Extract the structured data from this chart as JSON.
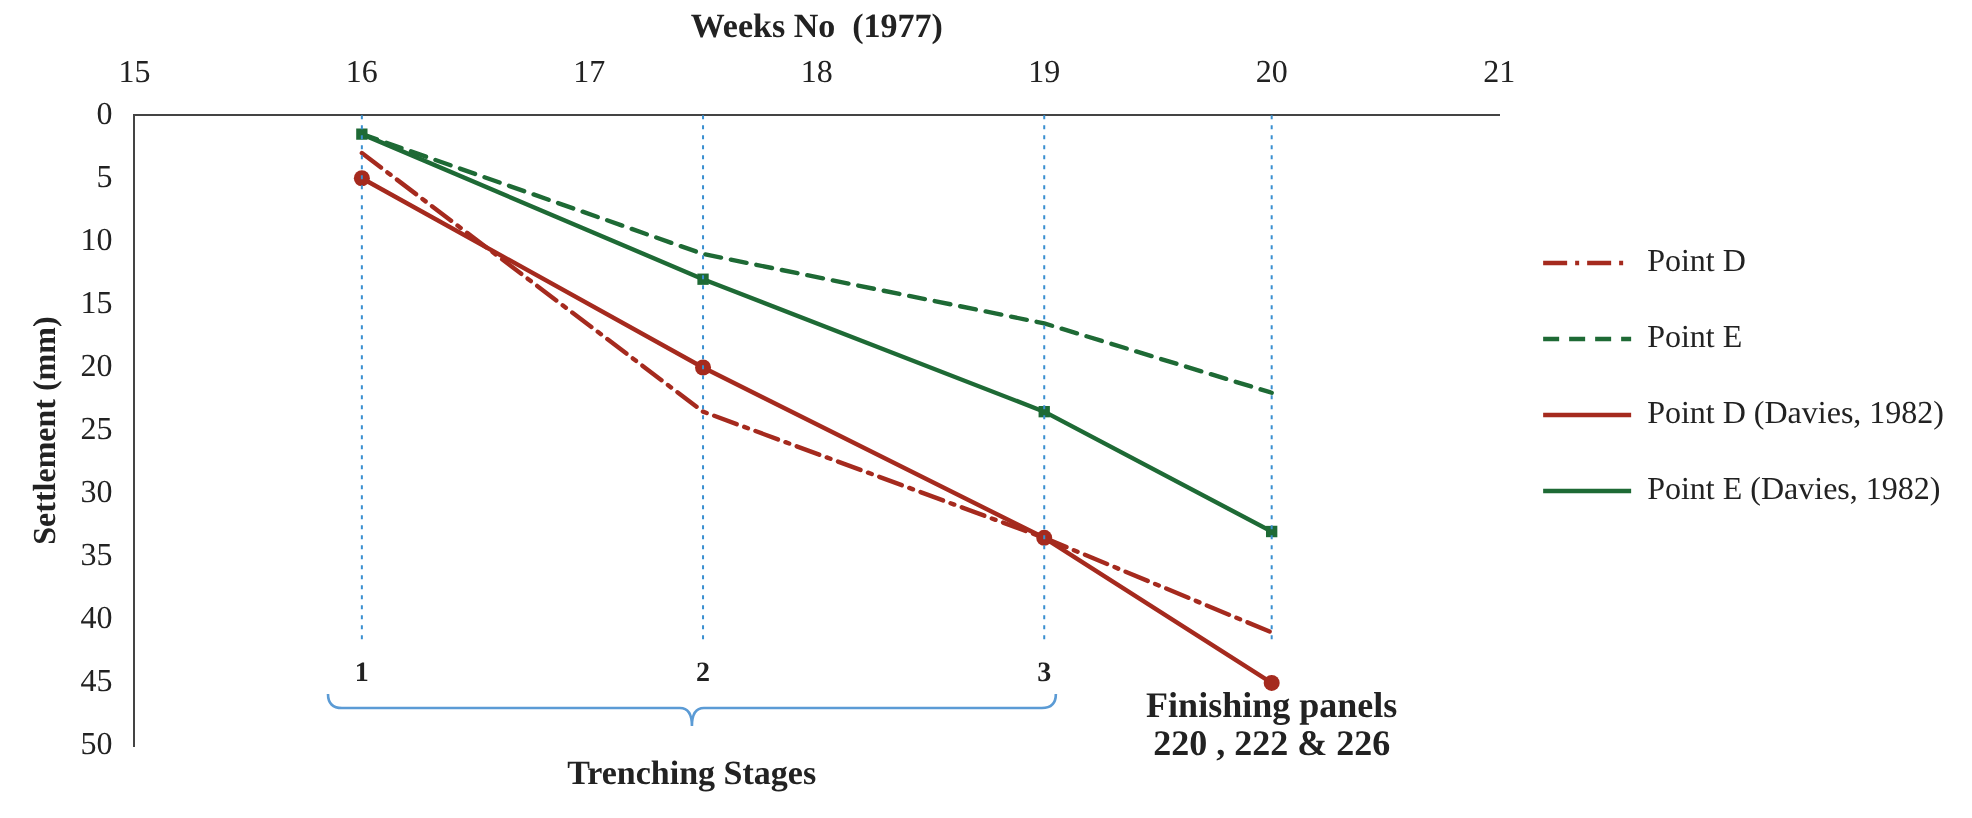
{
  "chart_data": {
    "type": "line",
    "xlabel": "Weeks No  (1977)",
    "ylabel": "Settlement (mm)",
    "xlim": [
      15,
      21
    ],
    "xticks": [
      15,
      16,
      17,
      18,
      19,
      20,
      21
    ],
    "ylim": [
      50,
      0
    ],
    "yticks": [
      0,
      5,
      10,
      15,
      20,
      25,
      30,
      35,
      40,
      45,
      50
    ],
    "grid": false,
    "legend": "right",
    "x": [
      16,
      17.5,
      19,
      20
    ],
    "series": [
      {
        "name": "Point D",
        "color": "#a52a1e",
        "values": [
          3,
          23.5,
          33.5,
          41
        ],
        "line_style": "dashdot",
        "marker": "none"
      },
      {
        "name": "Point E",
        "color": "#1e6a35",
        "values": [
          1.5,
          11,
          16.5,
          22
        ],
        "line_style": "dashed",
        "marker": "none"
      },
      {
        "name": "Point D (Davies, 1982)",
        "color": "#a52a1e",
        "values": [
          5,
          20,
          33.5,
          45
        ],
        "line_style": "solid",
        "marker": "circle"
      },
      {
        "name": "Point E (Davies, 1982)",
        "color": "#1e6a35",
        "values": [
          1.5,
          13,
          23.5,
          33
        ],
        "line_style": "solid",
        "marker": "square"
      }
    ],
    "ref_lines": [
      {
        "axis": "x",
        "value": 16,
        "color": "#3a8fd0",
        "line_style": "dotted"
      },
      {
        "axis": "x",
        "value": 17.5,
        "color": "#3a8fd0",
        "line_style": "dotted"
      },
      {
        "axis": "x",
        "value": 19,
        "color": "#3a8fd0",
        "line_style": "dotted"
      },
      {
        "axis": "x",
        "value": 20,
        "color": "#3a8fd0",
        "line_style": "dotted"
      }
    ],
    "annotations": [
      "Trenching Stages",
      "Finishing panels\n220 , 222 & 226",
      "1",
      "2",
      "3"
    ]
  }
}
